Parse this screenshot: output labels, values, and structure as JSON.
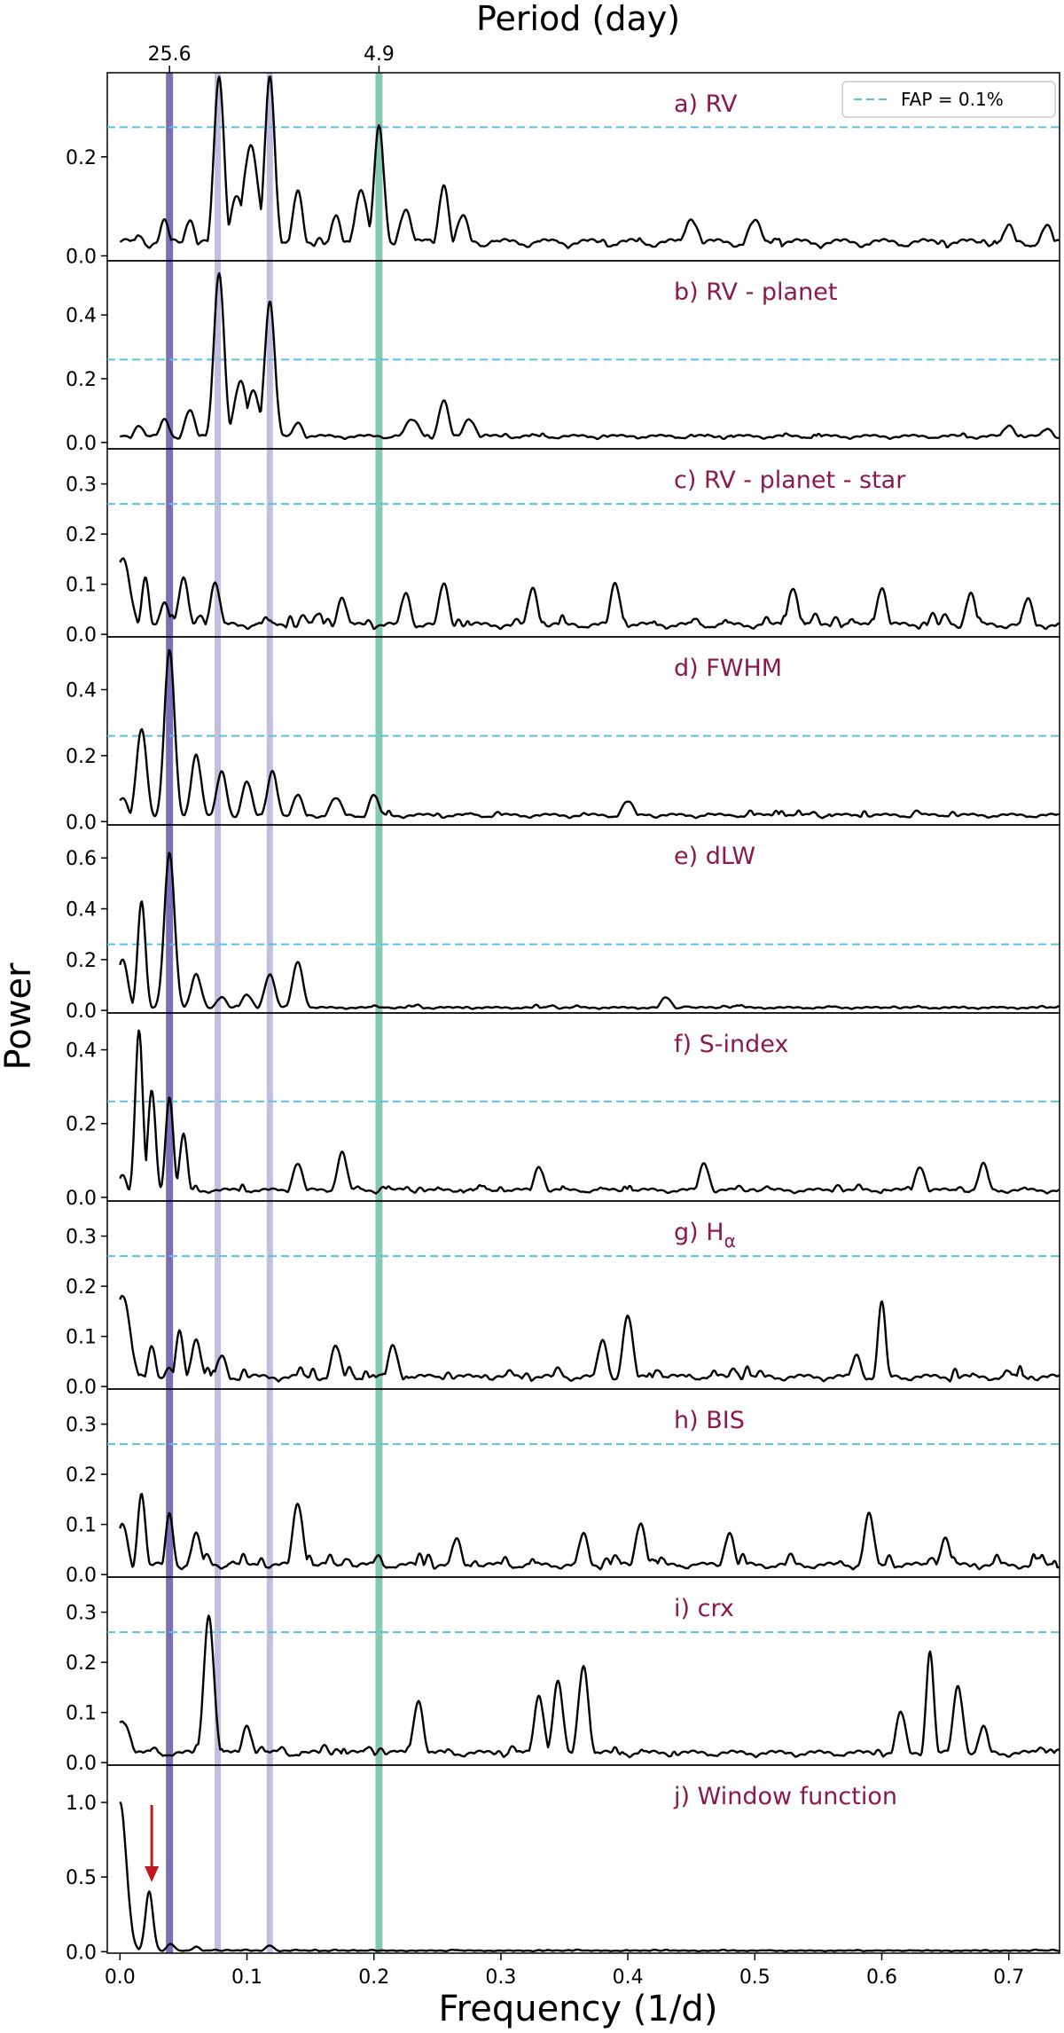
{
  "figure": {
    "top_axis_label": "Period (day)",
    "top_ticks": [
      {
        "freq": 0.039,
        "label": "25.6"
      },
      {
        "freq": 0.204,
        "label": "4.9"
      }
    ],
    "xlabel": "Frequency (1/d)",
    "ylabel": "Power",
    "legend_label": "FAP =  0.1%",
    "colors": {
      "curve": "#000000",
      "fap_line": "#5bc0e8",
      "label": "#8b1a4a",
      "band_dark": "#7b70b8",
      "band_light": "#c2bee0",
      "band_green": "#86c9b2",
      "arrow": "#c0181c"
    }
  },
  "chart_data": {
    "type": "line",
    "x_range": [
      -0.01,
      0.74
    ],
    "x_ticks": [
      0.0,
      0.1,
      0.2,
      0.3,
      0.4,
      0.5,
      0.6,
      0.7
    ],
    "x_tick_labels": [
      "0.0",
      "0.1",
      "0.2",
      "0.3",
      "0.4",
      "0.5",
      "0.6",
      "0.7"
    ],
    "vertical_bands": [
      {
        "freq": 0.039,
        "style": "dark"
      },
      {
        "freq": 0.077,
        "style": "light"
      },
      {
        "freq": 0.118,
        "style": "light"
      },
      {
        "freq": 0.204,
        "style": "green"
      }
    ],
    "panels": [
      {
        "label": "a) RV",
        "ylim": [
          -0.01,
          0.37
        ],
        "yticks": [
          0.0,
          0.2
        ],
        "ytick_labels": [
          "0.0",
          "0.2"
        ],
        "fap": 0.26,
        "legend": true,
        "base": 0.03,
        "noise": 0.025,
        "seed": 1,
        "peaks": [
          [
            0.015,
            0.04,
            0.004
          ],
          [
            0.035,
            0.07,
            0.004
          ],
          [
            0.055,
            0.07,
            0.004
          ],
          [
            0.078,
            0.36,
            0.004
          ],
          [
            0.092,
            0.12,
            0.005
          ],
          [
            0.103,
            0.22,
            0.006
          ],
          [
            0.118,
            0.36,
            0.004
          ],
          [
            0.14,
            0.13,
            0.004
          ],
          [
            0.17,
            0.08,
            0.004
          ],
          [
            0.19,
            0.13,
            0.005
          ],
          [
            0.204,
            0.26,
            0.004
          ],
          [
            0.225,
            0.09,
            0.005
          ],
          [
            0.255,
            0.14,
            0.004
          ],
          [
            0.27,
            0.08,
            0.005
          ],
          [
            0.45,
            0.07,
            0.006
          ],
          [
            0.5,
            0.07,
            0.006
          ],
          [
            0.7,
            0.06,
            0.005
          ],
          [
            0.73,
            0.06,
            0.005
          ]
        ]
      },
      {
        "label": "b) RV - planet",
        "ylim": [
          -0.02,
          0.57
        ],
        "yticks": [
          0.0,
          0.2,
          0.4
        ],
        "ytick_labels": [
          "0.0",
          "0.2",
          "0.4"
        ],
        "fap": 0.26,
        "legend": false,
        "base": 0.02,
        "noise": 0.02,
        "seed": 2,
        "peaks": [
          [
            0.015,
            0.05,
            0.004
          ],
          [
            0.035,
            0.07,
            0.004
          ],
          [
            0.055,
            0.1,
            0.004
          ],
          [
            0.078,
            0.53,
            0.004
          ],
          [
            0.095,
            0.19,
            0.005
          ],
          [
            0.105,
            0.16,
            0.005
          ],
          [
            0.118,
            0.44,
            0.004
          ],
          [
            0.14,
            0.06,
            0.004
          ],
          [
            0.23,
            0.07,
            0.006
          ],
          [
            0.255,
            0.13,
            0.004
          ],
          [
            0.275,
            0.07,
            0.005
          ],
          [
            0.7,
            0.05,
            0.005
          ],
          [
            0.73,
            0.04,
            0.005
          ]
        ]
      },
      {
        "label": "c) RV - planet - star",
        "ylim": [
          -0.005,
          0.37
        ],
        "yticks": [
          0.0,
          0.1,
          0.2,
          0.3
        ],
        "ytick_labels": [
          "0.0",
          "0.1",
          "0.2",
          "0.3"
        ],
        "fap": 0.26,
        "legend": false,
        "base": 0.02,
        "noise": 0.03,
        "seed": 3,
        "peaks": [
          [
            0.002,
            0.15,
            0.006
          ],
          [
            0.02,
            0.11,
            0.003
          ],
          [
            0.035,
            0.06,
            0.004
          ],
          [
            0.05,
            0.11,
            0.004
          ],
          [
            0.075,
            0.1,
            0.004
          ],
          [
            0.175,
            0.07,
            0.004
          ],
          [
            0.225,
            0.08,
            0.004
          ],
          [
            0.255,
            0.1,
            0.004
          ],
          [
            0.325,
            0.09,
            0.004
          ],
          [
            0.39,
            0.1,
            0.004
          ],
          [
            0.53,
            0.09,
            0.004
          ],
          [
            0.6,
            0.09,
            0.004
          ],
          [
            0.67,
            0.08,
            0.004
          ],
          [
            0.715,
            0.07,
            0.004
          ]
        ]
      },
      {
        "label": "d) FWHM",
        "ylim": [
          -0.01,
          0.56
        ],
        "yticks": [
          0.0,
          0.2,
          0.4
        ],
        "ytick_labels": [
          "0.0",
          "0.2",
          "0.4"
        ],
        "fap": 0.26,
        "legend": false,
        "base": 0.02,
        "noise": 0.025,
        "seed": 4,
        "peaks": [
          [
            0.002,
            0.07,
            0.004
          ],
          [
            0.017,
            0.28,
            0.004
          ],
          [
            0.039,
            0.52,
            0.004
          ],
          [
            0.06,
            0.2,
            0.004
          ],
          [
            0.08,
            0.15,
            0.004
          ],
          [
            0.1,
            0.12,
            0.004
          ],
          [
            0.12,
            0.15,
            0.004
          ],
          [
            0.14,
            0.08,
            0.004
          ],
          [
            0.17,
            0.07,
            0.005
          ],
          [
            0.2,
            0.08,
            0.004
          ],
          [
            0.4,
            0.06,
            0.005
          ]
        ]
      },
      {
        "label": "e) dLW",
        "ylim": [
          -0.01,
          0.73
        ],
        "yticks": [
          0.0,
          0.2,
          0.4,
          0.6
        ],
        "ytick_labels": [
          "0.0",
          "0.2",
          "0.4",
          "0.6"
        ],
        "fap": 0.26,
        "legend": false,
        "base": 0.01,
        "noise": 0.015,
        "seed": 5,
        "peaks": [
          [
            0.002,
            0.2,
            0.004
          ],
          [
            0.017,
            0.43,
            0.003
          ],
          [
            0.039,
            0.62,
            0.004
          ],
          [
            0.06,
            0.14,
            0.004
          ],
          [
            0.08,
            0.05,
            0.004
          ],
          [
            0.1,
            0.06,
            0.004
          ],
          [
            0.118,
            0.14,
            0.004
          ],
          [
            0.14,
            0.19,
            0.004
          ],
          [
            0.43,
            0.05,
            0.004
          ]
        ]
      },
      {
        "label": "f) S-index",
        "ylim": [
          -0.01,
          0.5
        ],
        "yticks": [
          0.0,
          0.2,
          0.4
        ],
        "ytick_labels": [
          "0.0",
          "0.2",
          "0.4"
        ],
        "fap": 0.26,
        "legend": false,
        "base": 0.02,
        "noise": 0.025,
        "seed": 6,
        "peaks": [
          [
            0.002,
            0.06,
            0.003
          ],
          [
            0.015,
            0.45,
            0.003
          ],
          [
            0.025,
            0.29,
            0.003
          ],
          [
            0.039,
            0.27,
            0.003
          ],
          [
            0.05,
            0.17,
            0.003
          ],
          [
            0.14,
            0.09,
            0.004
          ],
          [
            0.175,
            0.12,
            0.004
          ],
          [
            0.33,
            0.08,
            0.004
          ],
          [
            0.46,
            0.09,
            0.004
          ],
          [
            0.63,
            0.08,
            0.004
          ],
          [
            0.68,
            0.09,
            0.004
          ]
        ]
      },
      {
        "label": "g) H$_α$",
        "label_text": "g) H",
        "label_sub": "α",
        "ylim": [
          -0.005,
          0.37
        ],
        "yticks": [
          0.0,
          0.1,
          0.2,
          0.3
        ],
        "ytick_labels": [
          "0.0",
          "0.1",
          "0.2",
          "0.3"
        ],
        "fap": 0.26,
        "legend": false,
        "base": 0.02,
        "noise": 0.03,
        "seed": 7,
        "peaks": [
          [
            0.002,
            0.18,
            0.006
          ],
          [
            0.025,
            0.08,
            0.003
          ],
          [
            0.047,
            0.11,
            0.003
          ],
          [
            0.06,
            0.09,
            0.004
          ],
          [
            0.08,
            0.06,
            0.004
          ],
          [
            0.17,
            0.08,
            0.004
          ],
          [
            0.215,
            0.08,
            0.004
          ],
          [
            0.4,
            0.14,
            0.004
          ],
          [
            0.38,
            0.09,
            0.004
          ],
          [
            0.6,
            0.17,
            0.003
          ],
          [
            0.58,
            0.06,
            0.004
          ]
        ]
      },
      {
        "label": "h) BIS",
        "ylim": [
          -0.005,
          0.37
        ],
        "yticks": [
          0.0,
          0.1,
          0.2,
          0.3
        ],
        "ytick_labels": [
          "0.0",
          "0.1",
          "0.2",
          "0.3"
        ],
        "fap": 0.26,
        "legend": false,
        "base": 0.02,
        "noise": 0.03,
        "seed": 8,
        "peaks": [
          [
            0.002,
            0.1,
            0.004
          ],
          [
            0.017,
            0.16,
            0.003
          ],
          [
            0.039,
            0.12,
            0.003
          ],
          [
            0.06,
            0.08,
            0.004
          ],
          [
            0.14,
            0.14,
            0.004
          ],
          [
            0.265,
            0.07,
            0.004
          ],
          [
            0.365,
            0.08,
            0.004
          ],
          [
            0.41,
            0.1,
            0.004
          ],
          [
            0.48,
            0.08,
            0.004
          ],
          [
            0.59,
            0.12,
            0.004
          ],
          [
            0.65,
            0.07,
            0.004
          ]
        ]
      },
      {
        "label": "i) crx",
        "ylim": [
          -0.005,
          0.37
        ],
        "yticks": [
          0.0,
          0.1,
          0.2,
          0.3
        ],
        "ytick_labels": [
          "0.0",
          "0.1",
          "0.2",
          "0.3"
        ],
        "fap": 0.26,
        "legend": false,
        "base": 0.02,
        "noise": 0.025,
        "seed": 9,
        "peaks": [
          [
            0.002,
            0.08,
            0.006
          ],
          [
            0.07,
            0.29,
            0.004
          ],
          [
            0.1,
            0.07,
            0.004
          ],
          [
            0.235,
            0.12,
            0.004
          ],
          [
            0.33,
            0.13,
            0.004
          ],
          [
            0.345,
            0.16,
            0.004
          ],
          [
            0.365,
            0.19,
            0.004
          ],
          [
            0.615,
            0.1,
            0.004
          ],
          [
            0.638,
            0.22,
            0.003
          ],
          [
            0.66,
            0.15,
            0.004
          ],
          [
            0.68,
            0.07,
            0.004
          ]
        ]
      },
      {
        "label": "j) Window function",
        "ylim": [
          -0.01,
          1.25
        ],
        "yticks": [
          0.0,
          0.5,
          1.0
        ],
        "ytick_labels": [
          "0.0",
          "0.5",
          "1.0"
        ],
        "fap": null,
        "legend": false,
        "base": 0.005,
        "noise": 0.008,
        "seed": 10,
        "peaks": [
          [
            0.0,
            1.0,
            0.005
          ],
          [
            0.023,
            0.4,
            0.003
          ],
          [
            0.04,
            0.05,
            0.003
          ],
          [
            0.06,
            0.03,
            0.003
          ],
          [
            0.118,
            0.04,
            0.003
          ]
        ]
      }
    ]
  }
}
